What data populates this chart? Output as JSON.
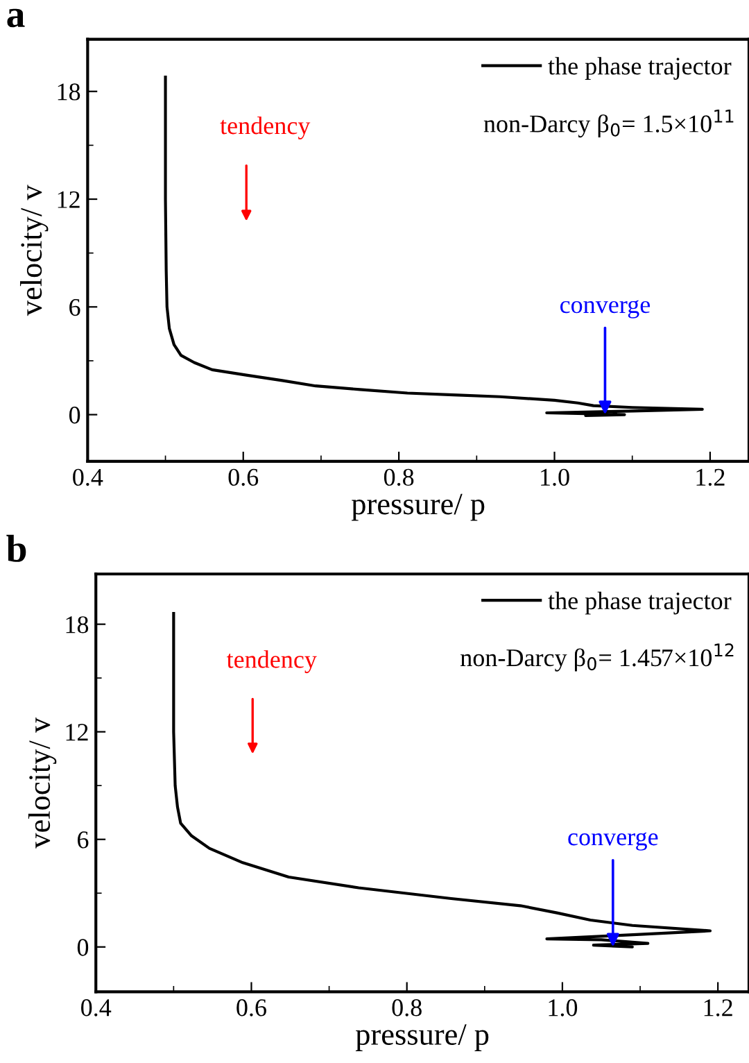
{
  "chart_data": [
    {
      "type": "line",
      "title": "a",
      "xlabel": "pressure/ p",
      "ylabel": "velocity/ v",
      "xlim": [
        0.4,
        1.25
      ],
      "ylim": [
        -2.6,
        20.9
      ],
      "xticks": [
        0.4,
        0.6,
        0.8,
        {
          "value": 1.0,
          "label": "1.0"
        },
        1.2
      ],
      "yticks": [
        0,
        6,
        12,
        18
      ],
      "grid": false,
      "legend": "top right",
      "line_style": "solid",
      "series": [
        {
          "name": "the phase trajector",
          "color": "#000000",
          "x": [
            0.5,
            0.5,
            0.501,
            0.502,
            0.505,
            0.511,
            0.52,
            0.537,
            0.56,
            0.604,
            0.65,
            0.693,
            0.75,
            0.811,
            0.87,
            0.93,
            1.0,
            1.03,
            1.05,
            1.1,
            1.19,
            1.1,
            0.99,
            1.05,
            1.09,
            1.04,
            1.08,
            1.065
          ],
          "values": [
            18.8,
            12.0,
            8.0,
            6.0,
            4.8,
            3.9,
            3.3,
            2.9,
            2.5,
            2.2,
            1.9,
            1.6,
            1.4,
            1.2,
            1.1,
            1.0,
            0.8,
            0.65,
            0.5,
            0.4,
            0.3,
            0.2,
            0.1,
            0.05,
            0.0,
            -0.05,
            0.02,
            0.0
          ]
        }
      ],
      "annotations": [
        {
          "text": "converge",
          "x": 1.065,
          "y": 0.0
        },
        "tendency",
        "non-Darcy β$_{0}$= 1.5×10$^{11}$"
      ]
    },
    {
      "type": "line",
      "title": "b",
      "xlabel": "pressure/ p",
      "ylabel": "velocity/ v",
      "xlim": [
        0.4,
        1.24
      ],
      "ylim": [
        -2.5,
        20.8
      ],
      "xticks": [
        0.4,
        0.6,
        0.8,
        {
          "value": 1.0,
          "label": "1.0"
        },
        1.2
      ],
      "yticks": [
        0,
        6,
        12,
        18
      ],
      "grid": false,
      "legend": "top right",
      "line_style": "solid",
      "series": [
        {
          "name": "the phase trajector",
          "color": "#000000",
          "x": [
            0.5,
            0.5,
            0.502,
            0.505,
            0.509,
            0.523,
            0.546,
            0.589,
            0.648,
            0.738,
            0.857,
            0.946,
            0.993,
            1.036,
            1.09,
            1.19,
            1.1,
            0.98,
            1.05,
            1.11,
            1.04,
            1.09,
            1.065
          ],
          "values": [
            18.6,
            12.0,
            9.0,
            7.8,
            6.9,
            6.2,
            5.5,
            4.7,
            3.9,
            3.3,
            2.7,
            2.3,
            1.9,
            1.5,
            1.2,
            0.9,
            0.7,
            0.45,
            0.4,
            0.2,
            0.1,
            0.0,
            0.05
          ]
        }
      ],
      "annotations": [
        {
          "text": "converge",
          "x": 1.065,
          "y": 0.0
        },
        "tendency",
        "non-Darcy β$_{0}$= 1.457×10$^{12}$"
      ]
    }
  ]
}
